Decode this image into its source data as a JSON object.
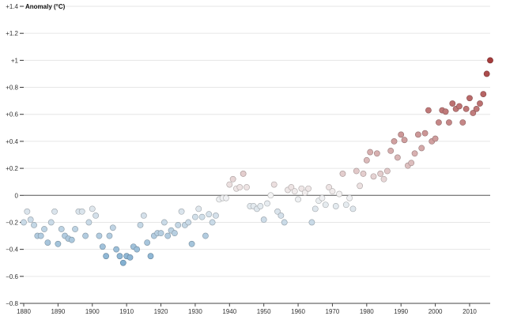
{
  "chart_data": {
    "type": "scatter",
    "title": "",
    "ylabel": "Anomaly (°C)",
    "xlabel": "",
    "xlim": [
      1880,
      2016
    ],
    "ylim": [
      -0.8,
      1.4
    ],
    "x_ticks": [
      1880,
      1890,
      1900,
      1910,
      1920,
      1930,
      1940,
      1950,
      1960,
      1970,
      1980,
      1990,
      2000,
      2010
    ],
    "x_tick_labels": [
      "1880",
      "1890",
      "1900",
      "1910",
      "1920",
      "1930",
      "1940",
      "1950",
      "1960",
      "1970",
      "1980",
      "1990",
      "2000",
      "2010"
    ],
    "y_ticks": [
      -0.8,
      -0.6,
      -0.4,
      -0.2,
      0,
      0.2,
      0.4,
      0.6,
      0.8,
      1.0,
      1.2,
      1.4
    ],
    "y_tick_labels": [
      "−0.8",
      "−0.6",
      "−0.4",
      "−0.2",
      "0",
      "+0.2",
      "+0.4",
      "+0.6",
      "+0.8",
      "+1",
      "+1.2",
      "+1.4"
    ],
    "grid": true,
    "zero_line": true,
    "point_sampling": "monthly",
    "color_scale": {
      "type": "diverging",
      "domain": [
        -0.8,
        0,
        1.4
      ],
      "colors": [
        "#2c7bb6",
        "#f4f4f4",
        "#8b0000"
      ]
    },
    "series": [
      {
        "x": [
          1880,
          1881,
          1882,
          1883,
          1884,
          1885,
          1886,
          1887,
          1888,
          1889,
          1890,
          1891,
          1892,
          1893,
          1894,
          1895,
          1896,
          1897,
          1898,
          1899,
          1900,
          1901,
          1902,
          1903,
          1904,
          1905,
          1906,
          1907,
          1908,
          1909,
          1910,
          1911,
          1912,
          1913,
          1914,
          1915,
          1916,
          1917,
          1918,
          1919,
          1920,
          1921,
          1922,
          1923,
          1924,
          1925,
          1926,
          1927,
          1928,
          1929,
          1930,
          1931,
          1932,
          1933,
          1934,
          1935,
          1936,
          1937,
          1938,
          1939,
          1940,
          1941,
          1942,
          1943,
          1944,
          1945,
          1946,
          1947,
          1948,
          1949,
          1950,
          1951,
          1952,
          1953,
          1954,
          1955,
          1956,
          1957,
          1958,
          1959,
          1960,
          1961,
          1962,
          1963,
          1964,
          1965,
          1966,
          1967,
          1968,
          1969,
          1970,
          1971,
          1972,
          1973,
          1974,
          1975,
          1976,
          1977,
          1978,
          1979,
          1980,
          1981,
          1982,
          1983,
          1984,
          1985,
          1986,
          1987,
          1988,
          1989,
          1990,
          1991,
          1992,
          1993,
          1994,
          1995,
          1996,
          1997,
          1998,
          1999,
          2000,
          2001,
          2002,
          2003,
          2004,
          2005,
          2006,
          2007,
          2008,
          2009,
          2010,
          2011,
          2012,
          2013,
          2014,
          2015,
          2016
        ],
        "y": [
          -0.2,
          -0.12,
          -0.18,
          -0.22,
          -0.3,
          -0.3,
          -0.25,
          -0.35,
          -0.2,
          -0.12,
          -0.36,
          -0.25,
          -0.3,
          -0.32,
          -0.33,
          -0.25,
          -0.12,
          -0.12,
          -0.3,
          -0.2,
          -0.1,
          -0.15,
          -0.3,
          -0.38,
          -0.45,
          -0.3,
          -0.24,
          -0.4,
          -0.45,
          -0.5,
          -0.45,
          -0.46,
          -0.38,
          -0.4,
          -0.22,
          -0.15,
          -0.35,
          -0.45,
          -0.3,
          -0.28,
          -0.28,
          -0.2,
          -0.3,
          -0.26,
          -0.28,
          -0.22,
          -0.12,
          -0.22,
          -0.2,
          -0.36,
          -0.16,
          -0.1,
          -0.16,
          -0.3,
          -0.14,
          -0.2,
          -0.15,
          -0.03,
          -0.02,
          -0.02,
          0.08,
          0.12,
          0.05,
          0.06,
          0.16,
          0.06,
          -0.08,
          -0.08,
          -0.1,
          -0.08,
          -0.18,
          -0.06,
          0.0,
          0.08,
          -0.12,
          -0.15,
          -0.2,
          0.04,
          0.06,
          0.03,
          -0.03,
          0.05,
          0.02,
          0.05,
          -0.2,
          -0.1,
          -0.04,
          -0.02,
          -0.07,
          0.06,
          0.03,
          -0.08,
          0.01,
          0.16,
          -0.07,
          -0.02,
          -0.1,
          0.18,
          0.07,
          0.16,
          0.26,
          0.32,
          0.14,
          0.31,
          0.16,
          0.12,
          0.18,
          0.33,
          0.4,
          0.28,
          0.45,
          0.41,
          0.22,
          0.24,
          0.31,
          0.45,
          0.35,
          0.46,
          0.63,
          0.4,
          0.42,
          0.54,
          0.63,
          0.62,
          0.54,
          0.68,
          0.64,
          0.66,
          0.54,
          0.64,
          0.72,
          0.61,
          0.64,
          0.68,
          0.75,
          0.9,
          1.0
        ]
      }
    ]
  }
}
